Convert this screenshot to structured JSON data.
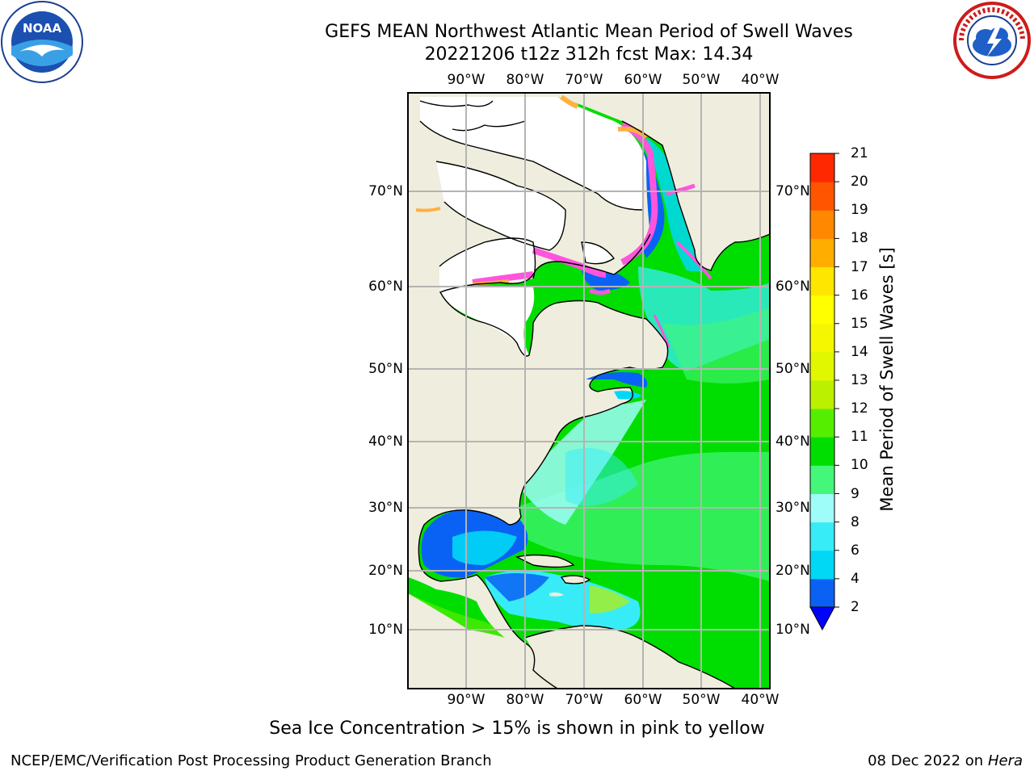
{
  "header": {
    "title_line1": "GEFS MEAN Northwest Atlantic Mean Period of Swell Waves",
    "title_line2": "20221206 t12z 312h fcst   Max: 14.34"
  },
  "logos": {
    "left": {
      "text": "NOAA",
      "ring_text": "NATIONAL OCEANIC AND ATMOSPHERIC ADMINISTRATION · U.S. DEPARTMENT OF COMMERCE"
    },
    "right": {
      "text": "NATIONAL WEATHER SERVICE"
    }
  },
  "map": {
    "lon_labels": [
      "90°W",
      "80°W",
      "70°W",
      "60°W",
      "50°W",
      "40°W"
    ],
    "lat_labels": [
      "70°N",
      "60°N",
      "50°N",
      "40°N",
      "30°N",
      "20°N",
      "10°N"
    ]
  },
  "colorbar": {
    "title": "Mean Period of Swell Waves [s]",
    "ticks": [
      "2",
      "4",
      "6",
      "8",
      "9",
      "10",
      "11",
      "12",
      "13",
      "14",
      "15",
      "16",
      "17",
      "18",
      "19",
      "20",
      "21"
    ],
    "colors": [
      "#0a62f5",
      "#00d8f5",
      "#37ecf7",
      "#9efdf9",
      "#44f77a",
      "#00dd00",
      "#55ee00",
      "#bbf000",
      "#e0f700",
      "#f5f700",
      "#ffff00",
      "#ffe600",
      "#ffae00",
      "#ff8800",
      "#ff5500",
      "#ff2800",
      "#ff0000"
    ],
    "extend_color": "#0000ff"
  },
  "colors": {
    "land": "#efeddd",
    "ice_region": "#ffffff",
    "grid": "#b4b4b4",
    "ice_pink": "#ff55dd",
    "ice_orange": "#ffb040"
  },
  "footer": {
    "note": "Sea Ice Concentration > 15% is shown in pink to yellow",
    "left": "NCEP/EMC/Verification Post Processing Product Generation Branch",
    "right_date": "08 Dec 2022 on",
    "right_host": "Hera"
  }
}
